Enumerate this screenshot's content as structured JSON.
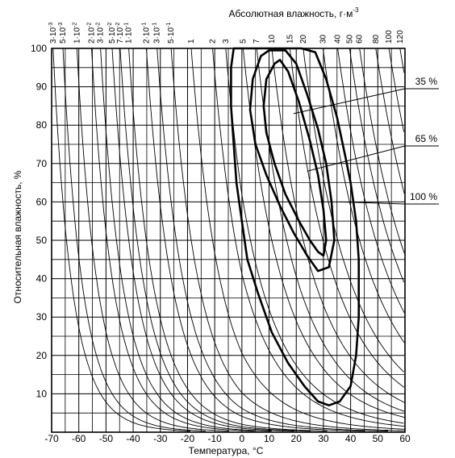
{
  "chart_data": {
    "type": "line",
    "title": "",
    "xlabel": "Температура, °С",
    "ylabel": "Относительная влажность, %",
    "top_axis_label": "Абсолютная влажность, г·м",
    "top_axis_label_sup": "-3",
    "xlim": [
      -70,
      60
    ],
    "ylim": [
      0,
      100
    ],
    "x_ticks": [
      "-70",
      "-60",
      "-50",
      "-40",
      "-30",
      "-20",
      "-10",
      "0",
      "10",
      "20",
      "30",
      "40",
      "50",
      "60"
    ],
    "y_ticks": [
      "10",
      "20",
      "30",
      "40",
      "50",
      "60",
      "70",
      "80",
      "90",
      "100"
    ],
    "grid": true,
    "absolute_humidity_isolines": [
      {
        "label": "3·10",
        "sup": "-3",
        "value": 0.003
      },
      {
        "label": "5·10",
        "sup": "-3",
        "value": 0.005
      },
      {
        "label": "1·10",
        "sup": "-2",
        "value": 0.01
      },
      {
        "label": "2·10",
        "sup": "-2",
        "value": 0.02
      },
      {
        "label": "3·10",
        "sup": "-2",
        "value": 0.03
      },
      {
        "label": "5·10",
        "sup": "-2",
        "value": 0.05
      },
      {
        "label": "7·10",
        "sup": "-2",
        "value": 0.07
      },
      {
        "label": "1·10",
        "sup": "-1",
        "value": 0.1
      },
      {
        "label": "2·10",
        "sup": "-1",
        "value": 0.2
      },
      {
        "label": "3·10",
        "sup": "-1",
        "value": 0.3
      },
      {
        "label": "5·10",
        "sup": "-1",
        "value": 0.5
      },
      {
        "label": "1",
        "sup": "",
        "value": 1
      },
      {
        "label": "2",
        "sup": "",
        "value": 2
      },
      {
        "label": "3",
        "sup": "",
        "value": 3
      },
      {
        "label": "5",
        "sup": "",
        "value": 5
      },
      {
        "label": "7",
        "sup": "",
        "value": 7
      },
      {
        "label": "10",
        "sup": "",
        "value": 10
      },
      {
        "label": "15",
        "sup": "",
        "value": 15
      },
      {
        "label": "20",
        "sup": "",
        "value": 20
      },
      {
        "label": "30",
        "sup": "",
        "value": 30
      },
      {
        "label": "40",
        "sup": "",
        "value": 40
      },
      {
        "label": "50",
        "sup": "",
        "value": 50
      },
      {
        "label": "60",
        "sup": "",
        "value": 60
      },
      {
        "label": "80",
        "sup": "",
        "value": 80
      },
      {
        "label": "100",
        "sup": "",
        "value": 100
      },
      {
        "label": "120",
        "sup": "",
        "value": 120
      }
    ],
    "series": [
      {
        "name": "35 %",
        "points": [
          [
            12,
            96
          ],
          [
            9,
            92
          ],
          [
            8,
            85
          ],
          [
            9,
            78
          ],
          [
            12,
            70
          ],
          [
            16,
            62
          ],
          [
            21,
            55
          ],
          [
            25,
            50
          ],
          [
            28,
            47
          ],
          [
            30,
            46
          ],
          [
            31,
            50
          ],
          [
            30,
            58
          ],
          [
            28,
            67
          ],
          [
            25,
            76
          ],
          [
            21,
            86
          ],
          [
            17,
            94
          ],
          [
            14,
            97
          ],
          [
            12,
            96
          ]
        ]
      },
      {
        "name": "65 %",
        "points": [
          [
            7,
            98
          ],
          [
            4,
            92
          ],
          [
            3,
            84
          ],
          [
            5,
            75
          ],
          [
            9,
            67
          ],
          [
            14,
            59
          ],
          [
            19,
            52
          ],
          [
            24,
            46
          ],
          [
            28,
            42
          ],
          [
            32,
            43
          ],
          [
            34,
            50
          ],
          [
            33,
            60
          ],
          [
            31,
            70
          ],
          [
            28,
            79
          ],
          [
            24,
            88
          ],
          [
            20,
            96
          ],
          [
            16,
            99.5
          ],
          [
            10,
            99.5
          ],
          [
            7,
            98
          ]
        ]
      },
      {
        "name": "100 %",
        "points": [
          [
            -3,
            100
          ],
          [
            -4,
            95
          ],
          [
            -4,
            85
          ],
          [
            -3,
            75
          ],
          [
            -2,
            65
          ],
          [
            0,
            55
          ],
          [
            2,
            45
          ],
          [
            6,
            36
          ],
          [
            11,
            26
          ],
          [
            17,
            18
          ],
          [
            23,
            12
          ],
          [
            28,
            8
          ],
          [
            32,
            7
          ],
          [
            36,
            8
          ],
          [
            40,
            12
          ],
          [
            42,
            20
          ],
          [
            43,
            30
          ],
          [
            43,
            45
          ],
          [
            42,
            55
          ],
          [
            40,
            65
          ],
          [
            38,
            72
          ],
          [
            35,
            82
          ],
          [
            31,
            92
          ],
          [
            27,
            99
          ],
          [
            22,
            100
          ],
          [
            -3,
            100
          ]
        ]
      }
    ],
    "annotations": [
      "35 %",
      "65 %",
      "100 %"
    ]
  }
}
